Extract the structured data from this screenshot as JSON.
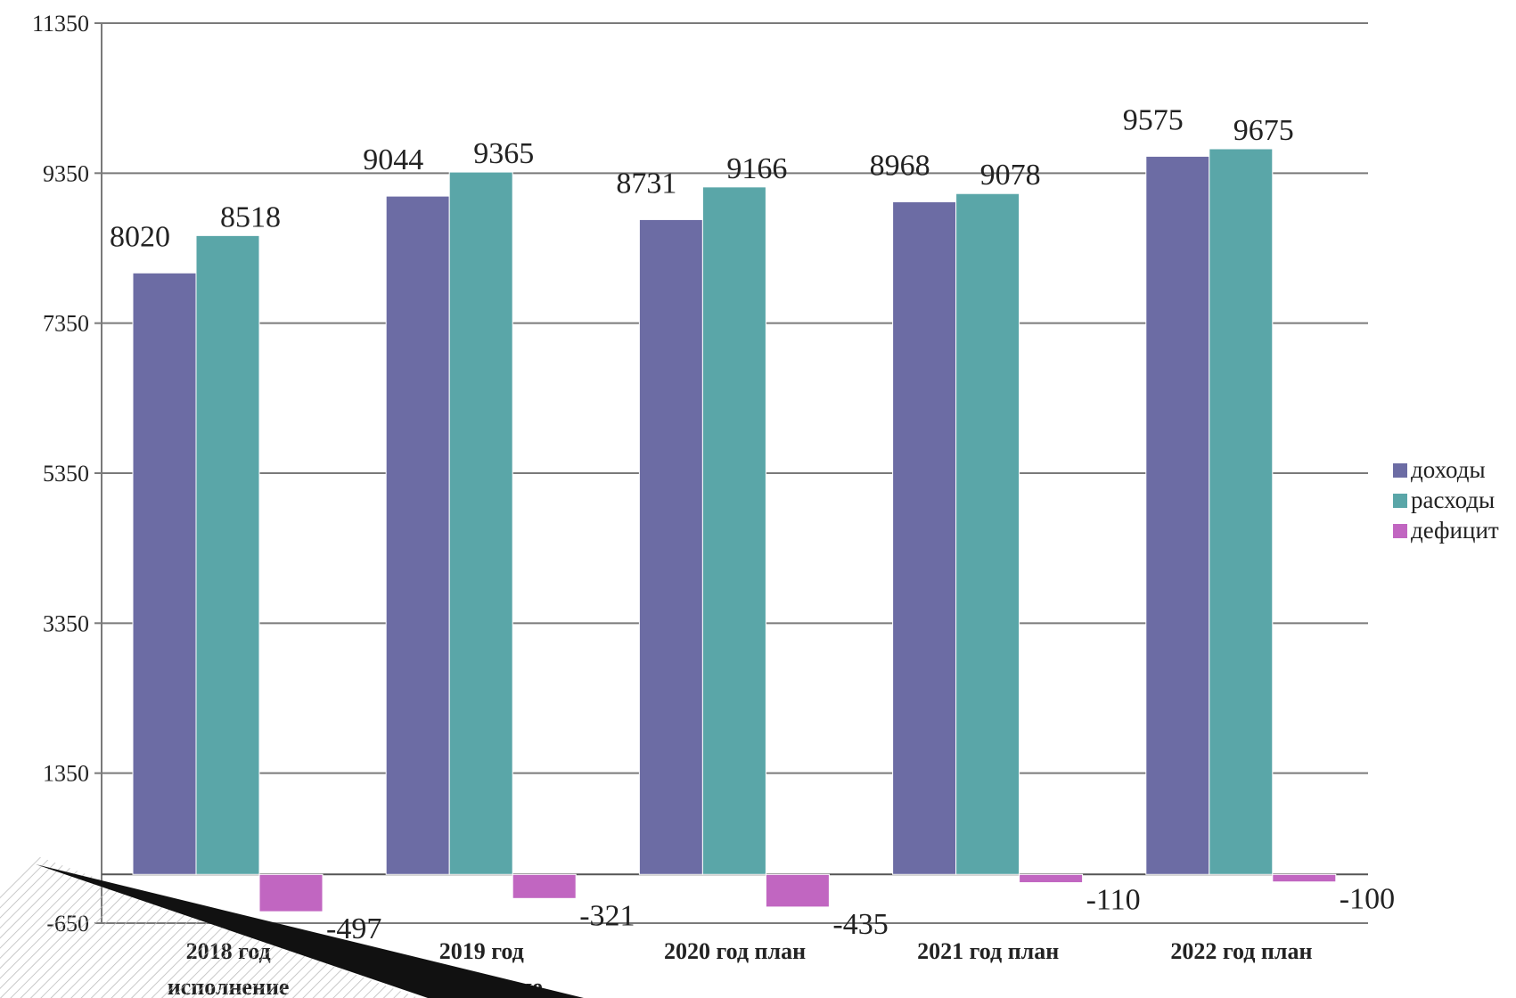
{
  "chart_data": {
    "type": "bar",
    "categories": [
      [
        "2018 год",
        "исполнение"
      ],
      [
        "2019 год",
        "исполнение"
      ],
      [
        "2020 год план"
      ],
      [
        "2021 год план"
      ],
      [
        "2022 год план"
      ]
    ],
    "series": [
      {
        "name": "доходы",
        "color": "#6c6ca4",
        "values": [
          8020,
          9044,
          8731,
          8968,
          9575
        ]
      },
      {
        "name": "расходы",
        "color": "#5aa6a8",
        "values": [
          8518,
          9365,
          9166,
          9078,
          9675
        ]
      },
      {
        "name": "дефицит",
        "color": "#c166c1",
        "values": [
          -497,
          -321,
          -435,
          -110,
          -100
        ]
      }
    ],
    "ylim": [
      -650,
      11350
    ],
    "yticks": [
      11350,
      9350,
      7350,
      5350,
      3350,
      1350,
      -650
    ],
    "grid": true,
    "legend_position": "right"
  }
}
